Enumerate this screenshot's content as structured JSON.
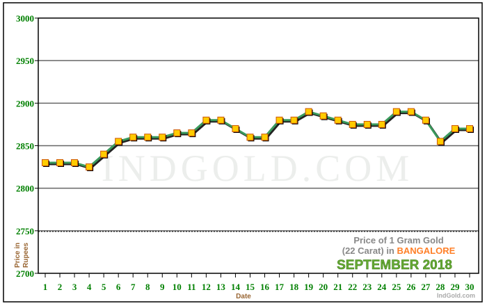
{
  "chart_data": {
    "type": "line",
    "title_line1": "Price of 1 Gram Gold",
    "title_line2_prefix": "(22 Carat) in ",
    "title_city": "BANGALORE",
    "subtitle": "SEPTEMBER 2018",
    "xlabel": "Date",
    "ylabel_line1": "Price in",
    "ylabel_line2": "Rupees",
    "watermark": "IndGold.com",
    "credit": "IndGold.com",
    "ylim": [
      2700,
      3000
    ],
    "yticks": [
      2700,
      2750,
      2800,
      2850,
      2900,
      2950,
      3000
    ],
    "grid": true,
    "x": [
      1,
      2,
      3,
      4,
      5,
      6,
      7,
      8,
      9,
      10,
      11,
      12,
      13,
      14,
      15,
      16,
      17,
      18,
      19,
      20,
      21,
      22,
      23,
      24,
      25,
      26,
      27,
      28,
      29,
      30
    ],
    "values": [
      2830,
      2830,
      2830,
      2825,
      2840,
      2855,
      2860,
      2860,
      2860,
      2865,
      2865,
      2880,
      2880,
      2870,
      2860,
      2860,
      2880,
      2880,
      2890,
      2885,
      2880,
      2875,
      2875,
      2875,
      2890,
      2890,
      2880,
      2855,
      2870,
      2870
    ],
    "colors": {
      "line": "#3a9a5c",
      "marker": "#ffcc00",
      "marker_edge": "#cc5500",
      "tick_text": "#008000",
      "axis_label": "#996633",
      "city": "#ff7f27",
      "subtitle": "#66aa33"
    }
  }
}
